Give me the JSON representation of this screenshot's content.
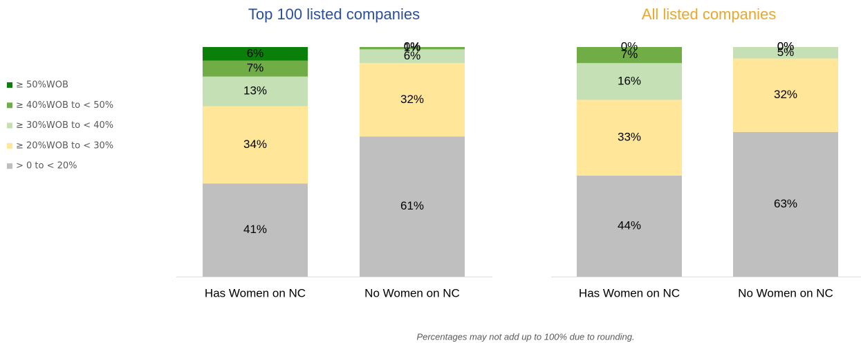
{
  "chart_data": [
    {
      "type": "bar",
      "stacked": true,
      "title": "Top 100 listed companies",
      "title_color": "#2a4f9c",
      "categories": [
        "Has Women on NC",
        "No Women on NC"
      ],
      "series": [
        {
          "name": "≥ 50%WOB",
          "color": "#0a800a",
          "values": [
            6,
            0
          ],
          "value_labels": [
            "6%",
            "0%"
          ]
        },
        {
          "name": "≥ 40%WOB to < 50%",
          "color": "#70ad47",
          "values": [
            7,
            1
          ],
          "value_labels": [
            "7%",
            "1%"
          ]
        },
        {
          "name": "≥ 30%WOB to < 40%",
          "color": "#c5e0b4",
          "values": [
            13,
            6
          ],
          "value_labels": [
            "13%",
            "6%"
          ]
        },
        {
          "name": "≥ 20%WOB to < 30%",
          "color": "#ffe699",
          "values": [
            34,
            32
          ],
          "value_labels": [
            "34%",
            "32%"
          ]
        },
        {
          "name": "> 0 to < 20%",
          "color": "#bfbfbf",
          "values": [
            41,
            61
          ],
          "value_labels": [
            "41%",
            "61%"
          ]
        }
      ]
    },
    {
      "type": "bar",
      "stacked": true,
      "title": "All listed companies",
      "title_color": "#e9a82b",
      "categories": [
        "Has Women on NC",
        "No Women on NC"
      ],
      "series": [
        {
          "color": "#0a800a",
          "values": [
            0,
            0
          ],
          "value_labels": [
            "0%",
            "0%"
          ]
        },
        {
          "color": "#70ad47",
          "values": [
            7,
            0
          ],
          "value_labels": [
            "7%",
            "0%"
          ]
        },
        {
          "color": "#c5e0b4",
          "values": [
            16,
            5
          ],
          "value_labels": [
            "16%",
            "5%"
          ]
        },
        {
          "color": "#ffe699",
          "values": [
            33,
            32
          ],
          "value_labels": [
            "33%",
            "32%"
          ]
        },
        {
          "color": "#bfbfbf",
          "values": [
            44,
            63
          ],
          "value_labels": [
            "44%",
            "63%"
          ]
        }
      ]
    }
  ],
  "footnote": "Percentages may not add up to 100% due to rounding."
}
